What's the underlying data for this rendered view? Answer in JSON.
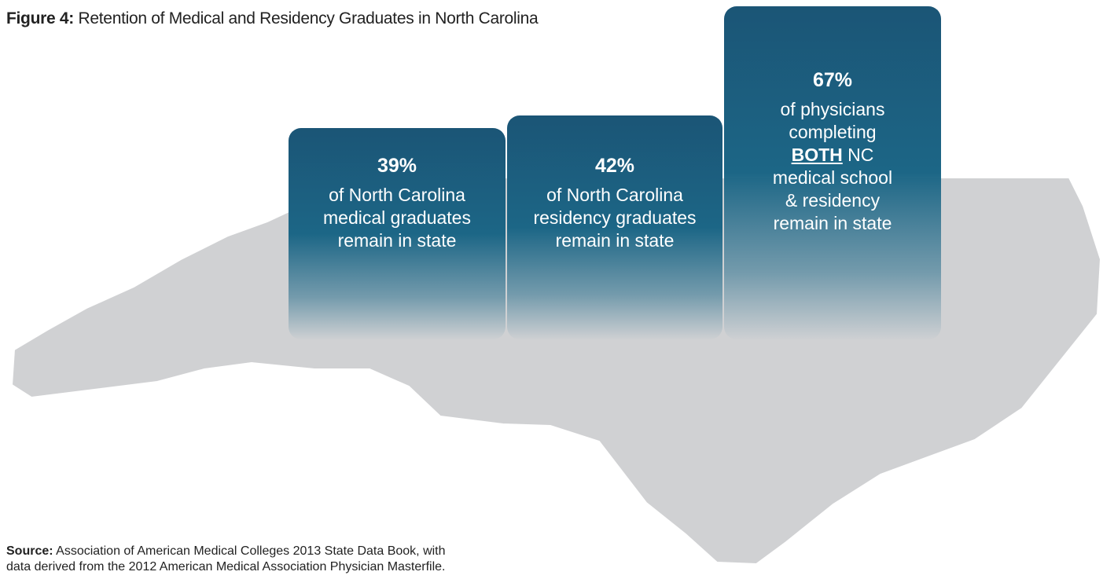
{
  "header": {
    "label": "Figure 4:",
    "title": "Retention of Medical and Residency Graduates in North Carolina"
  },
  "boxes": [
    {
      "percent": "39%",
      "lines": [
        "of North Carolina",
        "medical graduates",
        "remain in state"
      ]
    },
    {
      "percent": "42%",
      "lines": [
        "of North Carolina",
        "residency graduates",
        "remain in state"
      ]
    },
    {
      "percent": "67%",
      "lines_before": [
        "of physicians",
        "completing"
      ],
      "emphasis": "BOTH",
      "emphasis_after": "NC",
      "lines_after": [
        "medical school",
        "& residency",
        "remain in state"
      ]
    }
  ],
  "source": {
    "label": "Source:",
    "lines": [
      "Association of American Medical Colleges 2013 State Data Book, with",
      "data derived from the 2012 American Medical Association Physician Masterfile."
    ]
  }
}
